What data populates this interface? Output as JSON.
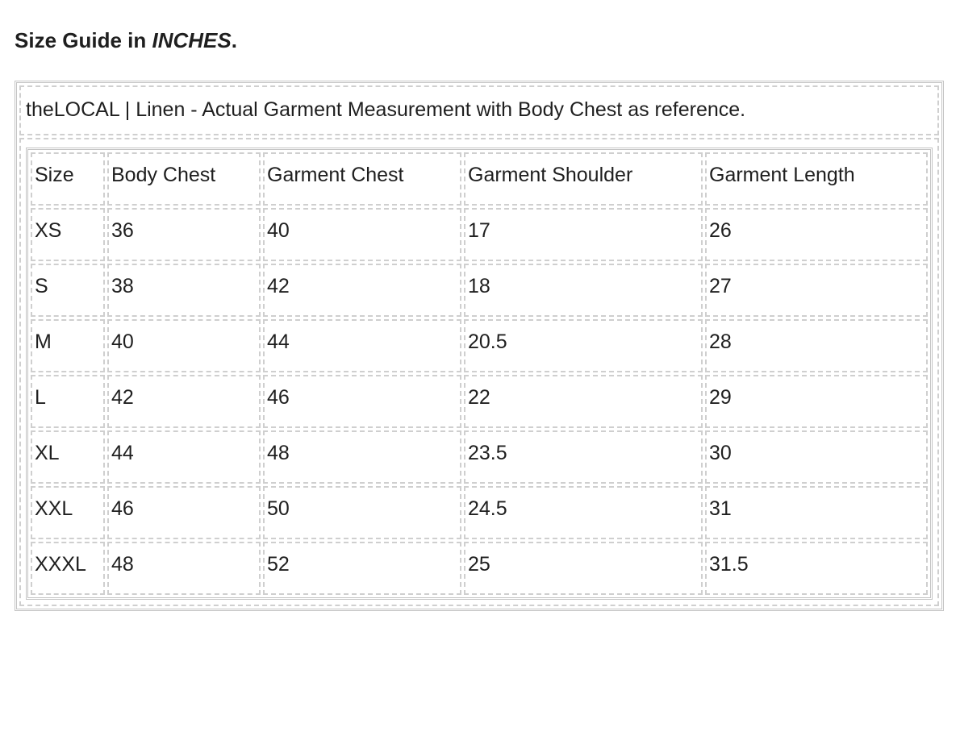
{
  "heading": {
    "prefix": "Size Guide in ",
    "emphasis": "INCHES",
    "suffix": "."
  },
  "caption": "theLOCAL | Linen - Actual Garment Measurement with Body Chest as reference.",
  "table": {
    "headers": [
      "Size",
      "Body Chest",
      "Garment Chest",
      "Garment Shoulder",
      "Garment Length"
    ],
    "rows": [
      [
        "XS",
        "36",
        "40",
        "17",
        "26"
      ],
      [
        "S",
        "38",
        "42",
        "18",
        "27"
      ],
      [
        "M",
        "40",
        "44",
        "20.5",
        "28"
      ],
      [
        "L",
        "42",
        "46",
        "22",
        "29"
      ],
      [
        "XL",
        "44",
        "48",
        "23.5",
        "30"
      ],
      [
        "XXL",
        "46",
        "50",
        "24.5",
        "31"
      ],
      [
        "XXXL",
        "48",
        "52",
        "25",
        "31.5"
      ]
    ]
  }
}
